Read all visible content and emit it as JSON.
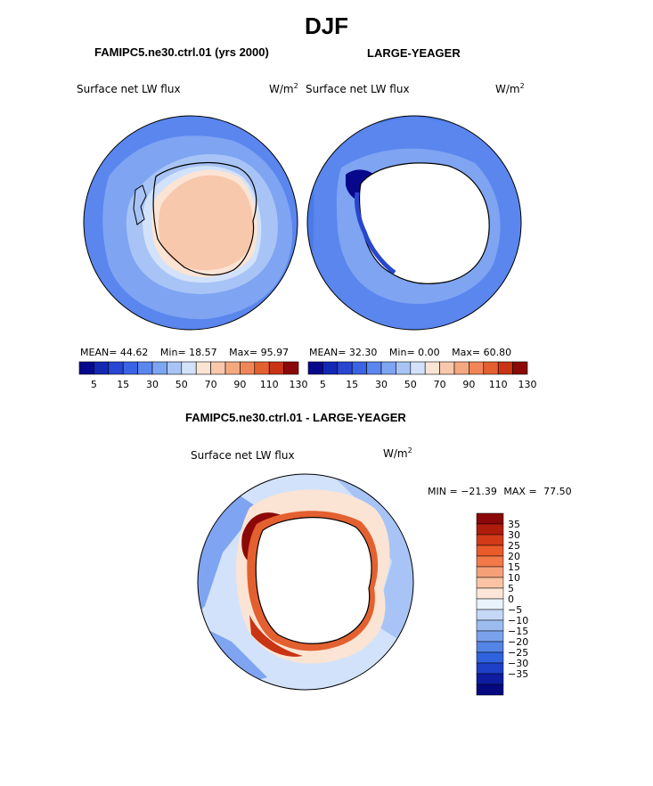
{
  "season": "DJF",
  "panel_left": {
    "case": "FAMIPC5.ne30.ctrl.01 (yrs 2000)",
    "field": "Surface net LW flux",
    "units_base": "W/m",
    "units_exp": "2",
    "stats": {
      "mean_label": "MEAN=",
      "mean": "44.62",
      "min_label": "Min=",
      "min": "18.57",
      "max_label": "Max=",
      "max": "95.97"
    }
  },
  "panel_right": {
    "case": "LARGE-YEAGER",
    "field": "Surface net LW flux",
    "units_base": "W/m",
    "units_exp": "2",
    "stats": {
      "mean_label": "MEAN=",
      "mean": "32.30",
      "min_label": "Min=",
      "min": "0.00",
      "max_label": "Max=",
      "max": "60.80"
    }
  },
  "colorbar_top": {
    "colors": [
      "#08088c",
      "#1428b4",
      "#2846d0",
      "#3a64e4",
      "#5a86ee",
      "#7ea4f2",
      "#a8c4f6",
      "#d2e2fa",
      "#fbe4d4",
      "#f8c8ac",
      "#f4a880",
      "#f08658",
      "#e46030",
      "#c83414",
      "#8c0808"
    ],
    "labels": [
      "5",
      "15",
      "30",
      "50",
      "70",
      "90",
      "110",
      "130"
    ]
  },
  "panel_diff": {
    "title": "FAMIPC5.ne30.ctrl.01 - LARGE-YEAGER",
    "field": "Surface net LW flux",
    "units_base": "W/m",
    "units_exp": "2",
    "minmax": {
      "min_label": "MIN =",
      "min": "−21.39",
      "max_label": "MAX =",
      "max": "77.50"
    }
  },
  "colorbar_diff": {
    "colors": [
      "#8c0808",
      "#b01c0c",
      "#d23a18",
      "#ea5a2a",
      "#f27a48",
      "#f6a078",
      "#fac4a4",
      "#fde6d8",
      "#eaf2fc",
      "#c4d8f6",
      "#9cbcf0",
      "#7aa2ec",
      "#5484e6",
      "#3062de",
      "#1e40c8",
      "#0e1ca0",
      "#060880"
    ],
    "labels": [
      "35",
      "30",
      "25",
      "20",
      "15",
      "10",
      "5",
      "0",
      "−5",
      "−10",
      "−15",
      "−20",
      "−25",
      "−30",
      "−35"
    ]
  }
}
